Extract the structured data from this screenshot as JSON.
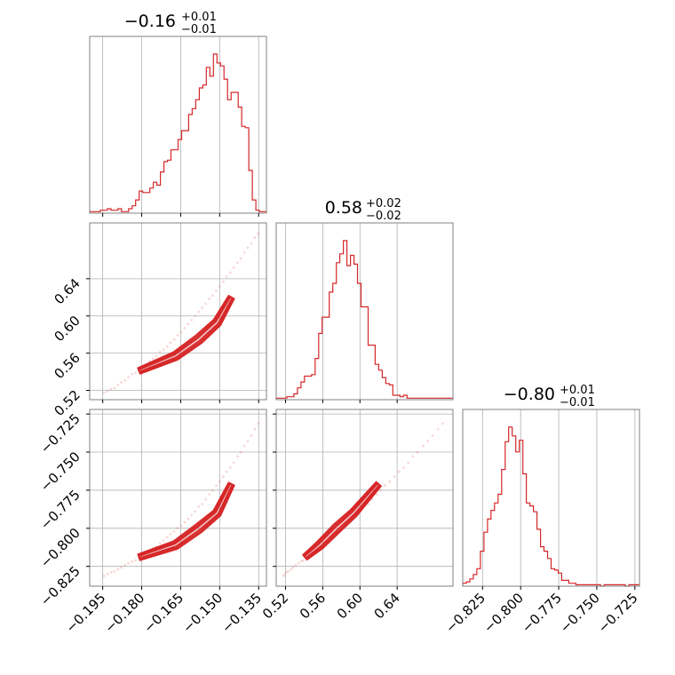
{
  "chart_data": {
    "type": "corner",
    "colors": {
      "line": "#d62728",
      "scatter": "#d62728",
      "grid": "#b0b0b0",
      "frame": "#808080"
    },
    "grid": true,
    "titles": [
      {
        "value": "−0.16",
        "plus": "+0.01",
        "minus": "−0.01"
      },
      {
        "value": "0.58",
        "plus": "+0.02",
        "minus": "−0.02"
      },
      {
        "value": "−0.80",
        "plus": "+0.01",
        "minus": "−0.01"
      }
    ],
    "params": [
      {
        "range": [
          -0.2,
          -0.132
        ],
        "ticks": [
          -0.195,
          -0.18,
          -0.165,
          -0.15,
          -0.135
        ],
        "tick_labels": [
          "−0.195",
          "−0.180",
          "−0.165",
          "−0.150",
          "−0.135"
        ]
      },
      {
        "range": [
          0.51,
          0.7
        ],
        "ticks": [
          0.52,
          0.56,
          0.6,
          0.64
        ],
        "tick_labels": [
          "0.52",
          "0.56",
          "0.60",
          "0.64"
        ]
      },
      {
        "range": [
          -0.838,
          -0.722
        ],
        "ticks": [
          -0.825,
          -0.8,
          -0.775,
          -0.75,
          -0.725
        ],
        "tick_labels": [
          "−0.825",
          "−0.800",
          "−0.775",
          "−0.750",
          "−0.725"
        ]
      }
    ],
    "histograms": [
      {
        "bin_start": -0.2,
        "bin_width": 0.00136,
        "counts": [
          1,
          1,
          1,
          2,
          2,
          3,
          2,
          2,
          3,
          1,
          1,
          3,
          5,
          9,
          15,
          14,
          14,
          17,
          21,
          19,
          28,
          35,
          36,
          43,
          43,
          50,
          56,
          56,
          67,
          71,
          77,
          85,
          87,
          99,
          93,
          108,
          102,
          100,
          91,
          77,
          82,
          82,
          72,
          59,
          58,
          29,
          9,
          2,
          1,
          1
        ]
      },
      {
        "bin_start": 0.51,
        "bin_width": 0.0038,
        "counts": [
          1,
          1,
          1,
          2,
          2,
          4,
          8,
          12,
          16,
          16,
          17,
          28,
          45,
          56,
          56,
          73,
          79,
          93,
          99,
          108,
          91,
          98,
          92,
          79,
          63,
          63,
          37,
          37,
          24,
          20,
          15,
          11,
          10,
          3,
          3,
          2,
          3,
          1,
          1,
          1,
          1,
          1,
          1,
          1,
          1,
          1,
          1,
          1,
          1,
          1
        ]
      },
      {
        "bin_start": -0.838,
        "bin_width": 0.00232,
        "counts": [
          2,
          3,
          5,
          8,
          12,
          24,
          37,
          46,
          52,
          57,
          63,
          80,
          99,
          109,
          103,
          92,
          100,
          77,
          57,
          55,
          51,
          39,
          27,
          24,
          19,
          12,
          11,
          9,
          4,
          4,
          2,
          2,
          1,
          1,
          1,
          1,
          1,
          1,
          1,
          0,
          1,
          1,
          1,
          1,
          1,
          1,
          0,
          1,
          1,
          1
        ]
      }
    ],
    "scatter_sample": {
      "x": [
        -0.1945,
        -0.1932,
        -0.1918,
        -0.1905,
        -0.1891,
        -0.1878,
        -0.1864,
        -0.1851,
        -0.1837,
        -0.1824,
        -0.181,
        -0.1797,
        -0.1783,
        -0.177,
        -0.1756,
        -0.1743,
        -0.1729,
        -0.1716,
        -0.1702,
        -0.1689,
        -0.1675,
        -0.1662,
        -0.1648,
        -0.1635,
        -0.1621,
        -0.1608,
        -0.1594,
        -0.1581,
        -0.1567,
        -0.1554,
        -0.154,
        -0.1527,
        -0.1513,
        -0.15,
        -0.1486,
        -0.1473,
        -0.1459,
        -0.1446,
        -0.1432,
        -0.1419,
        -0.1405,
        -0.1392,
        -0.1378,
        -0.1365,
        -0.1351
      ],
      "y": [
        0.518,
        0.519,
        0.521,
        0.523,
        0.526,
        0.528,
        0.531,
        0.534,
        0.537,
        0.539,
        0.542,
        0.545,
        0.548,
        0.551,
        0.554,
        0.557,
        0.561,
        0.564,
        0.567,
        0.571,
        0.575,
        0.579,
        0.583,
        0.587,
        0.591,
        0.596,
        0.6,
        0.604,
        0.609,
        0.613,
        0.618,
        0.622,
        0.627,
        0.632,
        0.637,
        0.642,
        0.647,
        0.652,
        0.657,
        0.662,
        0.668,
        0.673,
        0.678,
        0.684,
        0.689
      ],
      "z": [
        -0.831,
        -0.83,
        -0.829,
        -0.828,
        -0.827,
        -0.826,
        -0.824,
        -0.823,
        -0.822,
        -0.821,
        -0.819,
        -0.818,
        -0.816,
        -0.815,
        -0.813,
        -0.812,
        -0.81,
        -0.808,
        -0.806,
        -0.804,
        -0.802,
        -0.8,
        -0.798,
        -0.796,
        -0.794,
        -0.791,
        -0.789,
        -0.786,
        -0.784,
        -0.781,
        -0.778,
        -0.775,
        -0.772,
        -0.769,
        -0.766,
        -0.763,
        -0.76,
        -0.757,
        -0.753,
        -0.75,
        -0.746,
        -0.743,
        -0.739,
        -0.735,
        -0.731
      ]
    },
    "contour_center": {
      "x": [
        -0.181,
        -0.167,
        -0.158,
        -0.151,
        -0.1455
      ],
      "y": [
        0.541,
        0.557,
        0.575,
        0.593,
        0.62
      ],
      "z": [
        -0.819,
        -0.811,
        -0.8,
        -0.79,
        -0.771
      ]
    }
  }
}
